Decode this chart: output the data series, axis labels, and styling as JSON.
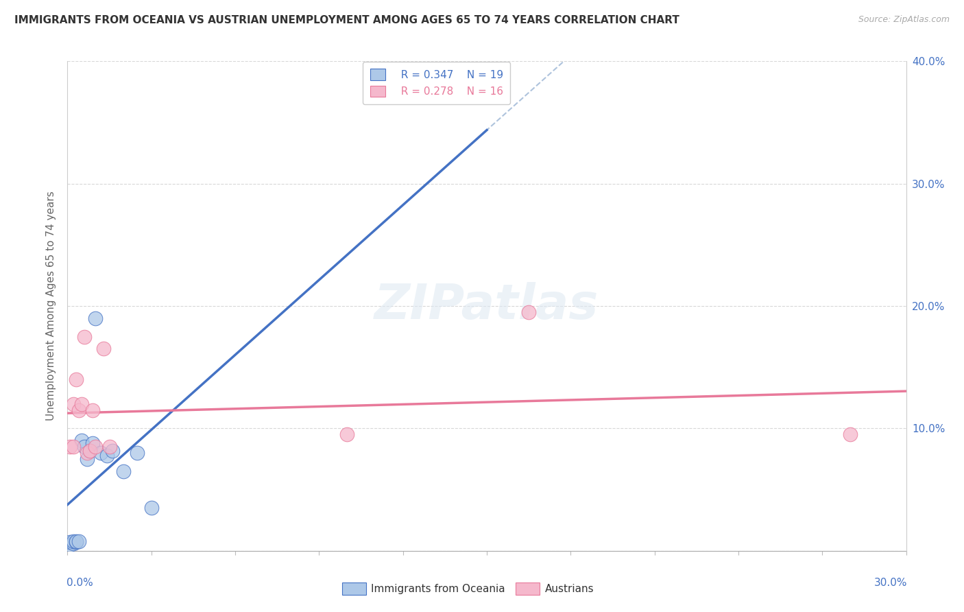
{
  "title": "IMMIGRANTS FROM OCEANIA VS AUSTRIAN UNEMPLOYMENT AMONG AGES 65 TO 74 YEARS CORRELATION CHART",
  "source": "Source: ZipAtlas.com",
  "ylabel": "Unemployment Among Ages 65 to 74 years",
  "legend_blue_label": "Immigrants from Oceania",
  "legend_pink_label": "Austrians",
  "legend_blue_R": "R = 0.347",
  "legend_blue_N": "N = 19",
  "legend_pink_R": "R = 0.278",
  "legend_pink_N": "N = 16",
  "xmin": 0.0,
  "xmax": 0.3,
  "ymin": 0.0,
  "ymax": 0.4,
  "blue_points_x": [
    0.001,
    0.001,
    0.002,
    0.002,
    0.003,
    0.003,
    0.004,
    0.005,
    0.006,
    0.007,
    0.008,
    0.009,
    0.01,
    0.012,
    0.014,
    0.016,
    0.02,
    0.025,
    0.03
  ],
  "blue_points_y": [
    0.005,
    0.007,
    0.006,
    0.008,
    0.007,
    0.008,
    0.008,
    0.09,
    0.085,
    0.075,
    0.082,
    0.088,
    0.19,
    0.08,
    0.078,
    0.082,
    0.065,
    0.08,
    0.035
  ],
  "pink_points_x": [
    0.001,
    0.002,
    0.002,
    0.003,
    0.004,
    0.005,
    0.006,
    0.007,
    0.008,
    0.009,
    0.01,
    0.013,
    0.015,
    0.1,
    0.165,
    0.28
  ],
  "pink_points_y": [
    0.085,
    0.085,
    0.12,
    0.14,
    0.115,
    0.12,
    0.175,
    0.08,
    0.082,
    0.115,
    0.085,
    0.165,
    0.085,
    0.095,
    0.195,
    0.095
  ],
  "blue_color": "#adc8e8",
  "pink_color": "#f5b8cc",
  "blue_edge_color": "#4472c4",
  "pink_edge_color": "#e8799a",
  "blue_line_color": "#4472c4",
  "pink_line_color": "#e8799a",
  "dashed_line_color": "#9ab4d4",
  "grid_color": "#d8d8d8",
  "watermark": "ZIPatlas",
  "background_color": "#ffffff",
  "blue_trend_x0": 0.0,
  "blue_trend_x1": 0.3,
  "pink_trend_x0": 0.0,
  "pink_trend_x1": 0.3
}
